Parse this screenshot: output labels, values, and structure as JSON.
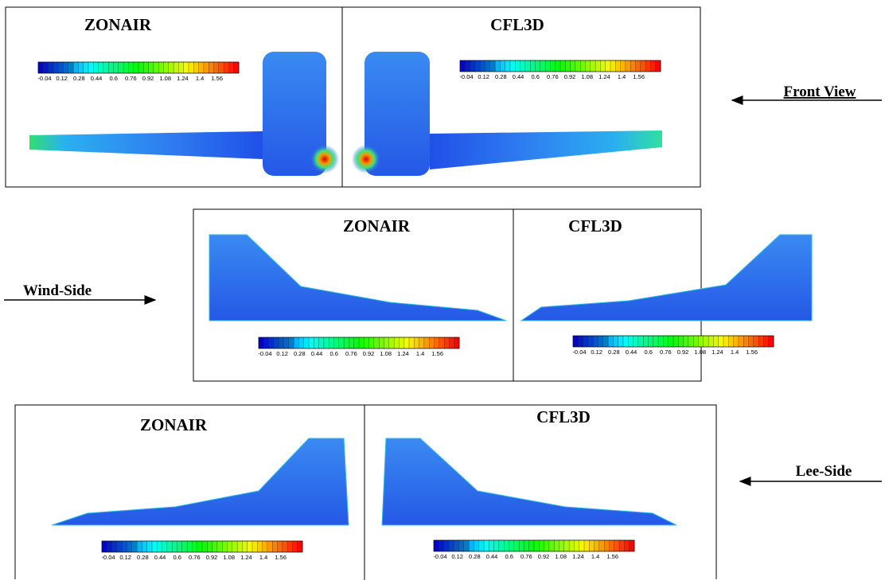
{
  "colorbar": {
    "ticks": [
      -0.04,
      0.12,
      0.28,
      0.44,
      0.6,
      0.76,
      0.92,
      1.08,
      1.24,
      1.4,
      1.56
    ]
  },
  "rows": [
    {
      "label": "Front View",
      "views": [
        {
          "title": "ZONAIR"
        },
        {
          "title": "CFL3D"
        }
      ]
    },
    {
      "label": "Wind-Side",
      "views": [
        {
          "title": "ZONAIR"
        },
        {
          "title": "CFL3D"
        }
      ]
    },
    {
      "label": "Lee-Side",
      "views": [
        {
          "title": "ZONAIR"
        },
        {
          "title": "CFL3D"
        }
      ]
    }
  ]
}
